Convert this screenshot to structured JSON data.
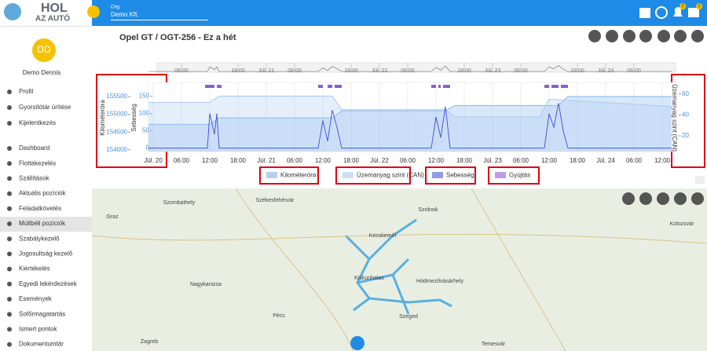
{
  "header": {
    "logo_line1": "HOL",
    "logo_line2": "AZ AUTÓ",
    "company_label": "Cég",
    "company_value": "Demo Kft.",
    "badges": [
      0,
      0
    ]
  },
  "user": {
    "initials": "DD",
    "name": "Demo Dennis"
  },
  "sidebar": {
    "account_menu": [
      "Profil",
      "Gyorsítótár ürítése",
      "Kijelentkezés"
    ],
    "menu": [
      "Dashboard",
      "Flottakezelés",
      "Szállítások",
      "Aktuális pozíciók",
      "Feladatkövetés",
      "Múltbéli pozíciók",
      "Szabálykezelő",
      "Jogosultság kezelő",
      "Kiértékelés",
      "Egyedi lekérdezések",
      "Események",
      "Sofőrmagatartás",
      "Ismert pontok",
      "Dokumentumtár"
    ]
  },
  "chart_data": {
    "type": "line",
    "title": "Opel GT / OGT-256 - Ez a hét",
    "ylabel": "Kilométeróra",
    "y3label": "Sebesség",
    "y2label": "Üzemanyag szint (CAN)",
    "xlim": [
      -1,
      111
    ],
    "xticks": [
      {
        "value": 0,
        "label": "Júl. 20"
      },
      {
        "value": 6,
        "label": "06:00"
      },
      {
        "value": 12,
        "label": "12:00"
      },
      {
        "value": 18,
        "label": "18:00"
      },
      {
        "value": 24,
        "label": "Júl. 21"
      },
      {
        "value": 30,
        "label": "06:00"
      },
      {
        "value": 36,
        "label": "12:00"
      },
      {
        "value": 42,
        "label": "18:00"
      },
      {
        "value": 48,
        "label": "Júl. 22"
      },
      {
        "value": 54,
        "label": "06:00"
      },
      {
        "value": 60,
        "label": "12:00"
      },
      {
        "value": 66,
        "label": "18:00"
      },
      {
        "value": 72,
        "label": "Júl. 23"
      },
      {
        "value": 78,
        "label": "06:00"
      },
      {
        "value": 84,
        "label": "12:00"
      },
      {
        "value": 90,
        "label": "18:00"
      },
      {
        "value": 96,
        "label": "Júl. 24"
      },
      {
        "value": 102,
        "label": "06:00"
      },
      {
        "value": 108,
        "label": "12:00"
      }
    ],
    "navigator_ticks": [
      {
        "value": 6,
        "label": "06:00"
      },
      {
        "value": 18,
        "label": "18:00"
      },
      {
        "value": 24,
        "label": "Júl. 21"
      },
      {
        "value": 30,
        "label": "06:00"
      },
      {
        "value": 42,
        "label": "18:00"
      },
      {
        "value": 48,
        "label": "Júl. 22"
      },
      {
        "value": 54,
        "label": "06:00"
      },
      {
        "value": 66,
        "label": "18:00"
      },
      {
        "value": 72,
        "label": "Júl. 23"
      },
      {
        "value": 78,
        "label": "06:00"
      },
      {
        "value": 90,
        "label": "18:00"
      },
      {
        "value": 96,
        "label": "Júl. 24"
      },
      {
        "value": 102,
        "label": "06:00"
      }
    ],
    "ylim": [
      153950,
      155900
    ],
    "yticks": [
      154000,
      154500,
      155000,
      155500
    ],
    "y3lim": [
      -10,
      190
    ],
    "y3ticks": [
      0,
      50,
      100,
      150
    ],
    "y2lim": [
      5,
      71
    ],
    "y2ticks": [
      20,
      40,
      60
    ],
    "series": [
      {
        "name": "Kilométeróra",
        "color": "#7fb2ea",
        "axis": "y",
        "x": [
          -1,
          12,
          14,
          38,
          40,
          62,
          64,
          86,
          88,
          110
        ],
        "values": [
          154720,
          154720,
          154900,
          154900,
          155100,
          155100,
          155250,
          155250,
          155500,
          155500
        ]
      },
      {
        "name": "Üzemanyag szint (CAN)",
        "color": "#a9c9f2",
        "axis": "y2",
        "x": [
          -1,
          12,
          14,
          38,
          40,
          62,
          64,
          82,
          84,
          110
        ],
        "values": [
          52,
          52,
          58,
          58,
          45,
          45,
          38,
          38,
          55,
          48
        ]
      },
      {
        "name": "Sebesség",
        "color": "#4b57d6",
        "axis": "y3",
        "x": [
          -1,
          11.5,
          12,
          13,
          13.5,
          14,
          35,
          36,
          37,
          38,
          39,
          40,
          59,
          60,
          61,
          62,
          63,
          83,
          84,
          85,
          86,
          87,
          88,
          110
        ],
        "values": [
          0,
          0,
          100,
          40,
          100,
          0,
          0,
          80,
          20,
          110,
          60,
          0,
          0,
          90,
          30,
          120,
          0,
          0,
          100,
          60,
          130,
          50,
          0,
          0
        ]
      },
      {
        "name": "Gyújtás",
        "color": "#8e5bd6",
        "intervals": [
          [
            11,
            13
          ],
          [
            13.5,
            14.5
          ],
          [
            35,
            36
          ],
          [
            37,
            38
          ],
          [
            38.5,
            40
          ],
          [
            59,
            60
          ],
          [
            60.5,
            61
          ],
          [
            61.5,
            63
          ],
          [
            83,
            84
          ],
          [
            84.5,
            86
          ],
          [
            86.5,
            88
          ]
        ]
      }
    ]
  },
  "map": {
    "places": [
      "Graz",
      "Szombathely",
      "Székesfehérvár",
      "Szolnok",
      "Kecskemét",
      "Kiskunhalas",
      "Hódmezővásárhely",
      "Szeged",
      "Pécs",
      "Nagykanizsa",
      "Zagreb",
      "Temesvár",
      "Kolozsvár"
    ]
  }
}
